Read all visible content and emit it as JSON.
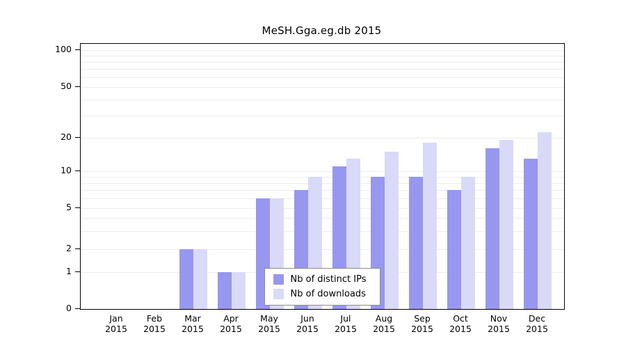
{
  "title": "MeSH.Gga.eg.db 2015",
  "chart_data": {
    "type": "bar",
    "title": "MeSH.Gga.eg.db 2015",
    "scale": "log",
    "grid": true,
    "legend_position": "bottom-center",
    "ylim": [
      0,
      100
    ],
    "yticks": [
      0,
      1,
      2,
      5,
      10,
      20,
      50,
      100
    ],
    "categories": [
      {
        "month": "Jan",
        "year": "2015"
      },
      {
        "month": "Feb",
        "year": "2015"
      },
      {
        "month": "Mar",
        "year": "2015"
      },
      {
        "month": "Apr",
        "year": "2015"
      },
      {
        "month": "May",
        "year": "2015"
      },
      {
        "month": "Jun",
        "year": "2015"
      },
      {
        "month": "Jul",
        "year": "2015"
      },
      {
        "month": "Aug",
        "year": "2015"
      },
      {
        "month": "Sep",
        "year": "2015"
      },
      {
        "month": "Oct",
        "year": "2015"
      },
      {
        "month": "Nov",
        "year": "2015"
      },
      {
        "month": "Dec",
        "year": "2015"
      }
    ],
    "series": [
      {
        "name": "Nb of distinct IPs",
        "color": "#9797ef",
        "values": [
          0,
          0,
          2,
          1,
          6,
          7,
          11,
          9,
          9,
          7,
          16,
          13
        ]
      },
      {
        "name": "Nb of downloads",
        "color": "#d9d9f8",
        "values": [
          0,
          0,
          2,
          1,
          6,
          9,
          13,
          15,
          18,
          9,
          19,
          22
        ]
      }
    ]
  }
}
